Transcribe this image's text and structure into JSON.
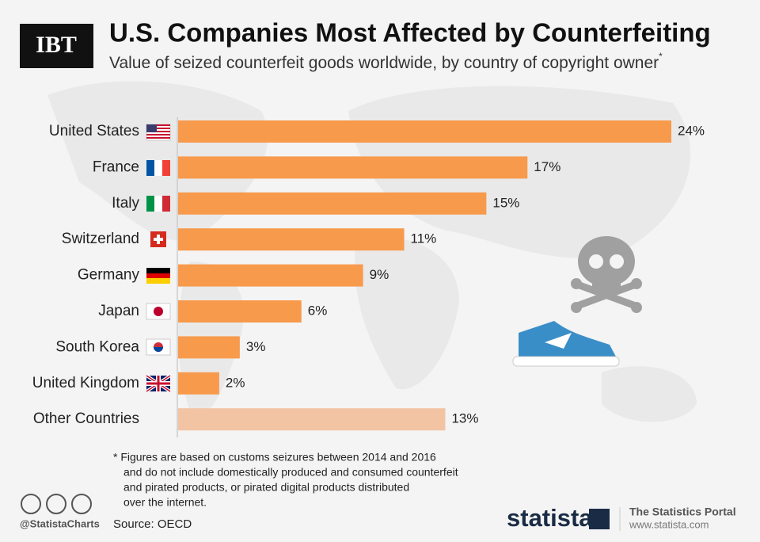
{
  "logo": "IBT",
  "chart_data": {
    "type": "bar",
    "orientation": "horizontal",
    "title": "U.S. Companies Most Affected by Counterfeiting",
    "subtitle": "Value of seized counterfeit goods worldwide, by country of copyright owner",
    "subtitle_marker": "*",
    "categories": [
      "United States",
      "France",
      "Italy",
      "Switzerland",
      "Germany",
      "Japan",
      "South Korea",
      "United Kingdom",
      "Other Countries"
    ],
    "values": [
      24,
      17,
      15,
      11,
      9,
      6,
      3,
      2,
      13
    ],
    "value_labels": [
      "24%",
      "17%",
      "15%",
      "11%",
      "9%",
      "6%",
      "3%",
      "2%",
      "13%"
    ],
    "colors": [
      "#f79a4c",
      "#f79a4c",
      "#f79a4c",
      "#f79a4c",
      "#f79a4c",
      "#f79a4c",
      "#f79a4c",
      "#f79a4c",
      "#f2c4a4"
    ]
  },
  "footnote": [
    "* Figures are based on customs seizures between 2014 and 2016",
    "and do not include domestically produced and consumed counterfeit",
    "and pirated products, or pirated digital products distributed",
    "over the internet."
  ],
  "credit": "@StatistaCharts",
  "source": "Source: OECD",
  "brand": "statista",
  "tagline": "The Statistics Portal",
  "website": "www.statista.com"
}
